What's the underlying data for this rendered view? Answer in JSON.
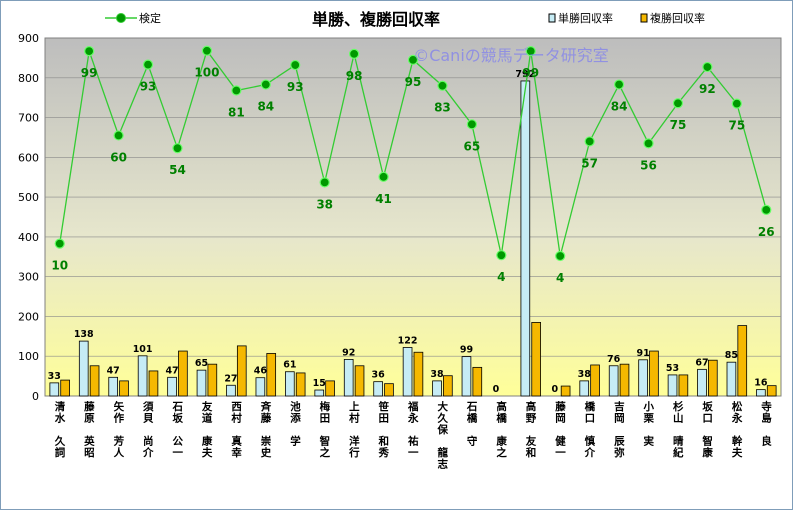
{
  "chart_data": {
    "type": "bar",
    "title": "単勝、複勝回収率",
    "watermark": "©Caniの競馬データ研究室",
    "ylim": [
      0,
      900
    ],
    "yticks": [
      0,
      100,
      200,
      300,
      400,
      500,
      600,
      700,
      800,
      900
    ],
    "categories": [
      "清水 久詞",
      "藤原 英昭",
      "矢作 芳人",
      "須貝 尚介",
      "石坂 公一",
      "友道 康夫",
      "西村 真幸",
      "斉藤 崇史",
      "池添 学",
      "梅田 智之",
      "上村 洋行",
      "笹田 和秀",
      "福永 祐一",
      "大久保 龍志",
      "石橋 守",
      "高橋 康之",
      "高野 友和",
      "藤岡 健一",
      "橋口 慎介",
      "吉岡 辰弥",
      "小栗 実",
      "杉山 晴紀",
      "坂口 智康",
      "松永 幹夫",
      "寺島 良"
    ],
    "series": [
      {
        "name": "単勝回収率",
        "type": "bar",
        "color": "#c6ecf5",
        "values": [
          33,
          138,
          47,
          101,
          47,
          65,
          27,
          46,
          61,
          15,
          92,
          36,
          122,
          38,
          99,
          0,
          792,
          0,
          38,
          76,
          91,
          53,
          67,
          85,
          16
        ],
        "labels": [
          "33",
          "138",
          "47",
          "101",
          "47",
          "65",
          "27",
          "46",
          "61",
          "15",
          "92",
          "36",
          "122",
          "38",
          "99",
          "0",
          "792",
          "0",
          "38",
          "76",
          "91",
          "53",
          "67",
          "85",
          "16"
        ]
      },
      {
        "name": "複勝回収率",
        "type": "bar",
        "color": "#f5b800",
        "values": [
          40,
          76,
          38,
          63,
          113,
          80,
          126,
          107,
          58,
          38,
          76,
          31,
          110,
          51,
          72,
          0,
          185,
          25,
          78,
          80,
          113,
          53,
          90,
          177,
          26
        ]
      },
      {
        "name": "検定",
        "type": "line",
        "color": "#33cc33",
        "values": [
          383,
          867,
          655,
          833,
          623,
          868,
          768,
          783,
          832,
          537,
          860,
          551,
          845,
          780,
          683,
          354,
          867,
          352,
          640,
          783,
          635,
          736,
          827,
          735,
          468
        ],
        "labels": [
          "10",
          "99",
          "60",
          "93",
          "54",
          "100",
          "81",
          "84",
          "93",
          "38",
          "98",
          "41",
          "95",
          "83",
          "65",
          "4",
          "99",
          "4",
          "57",
          "84",
          "56",
          "75",
          "92",
          "75",
          "26"
        ]
      }
    ],
    "legend_position": "top",
    "grid": true
  }
}
